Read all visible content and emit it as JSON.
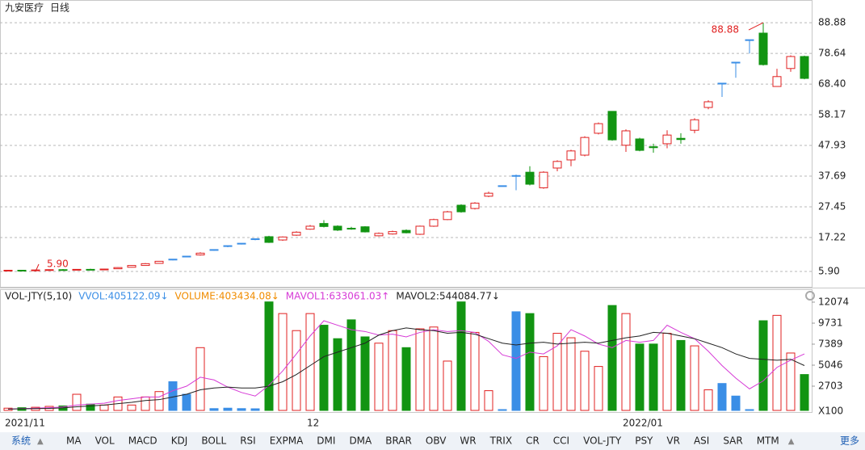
{
  "header": {
    "title": "九安医疗",
    "period": "日线"
  },
  "chart_data": [
    {
      "type": "candlestick",
      "categories": [
        "2021/11",
        null,
        null,
        null,
        null,
        null,
        null,
        null,
        null,
        null,
        null,
        null,
        null,
        null,
        null,
        null,
        null,
        null,
        null,
        null,
        null,
        null,
        "12",
        null,
        null,
        null,
        null,
        null,
        null,
        null,
        null,
        null,
        null,
        null,
        null,
        null,
        null,
        null,
        null,
        null,
        null,
        null,
        null,
        null,
        null,
        "2022/01",
        null,
        null,
        null,
        null,
        null,
        null,
        null,
        null,
        null,
        null,
        null,
        null,
        null
      ],
      "open": [
        6.2,
        6.3,
        6.2,
        6.4,
        6.5,
        6.4,
        6.6,
        6.5,
        6.8,
        7.3,
        7.9,
        8.6,
        10.0,
        11.0,
        11.4,
        13.2,
        14.5,
        15.3,
        16.8,
        17.5,
        16.4,
        18.0,
        20.0,
        21.9,
        21.0,
        20.3,
        20.8,
        17.8,
        18.4,
        19.6,
        18.3,
        21.0,
        23.2,
        28.0,
        26.9,
        31.0,
        34.5,
        37.9,
        39.0,
        33.8,
        40.4,
        43.1,
        44.7,
        52.0,
        59.3,
        48.0,
        50.1,
        47.5,
        48.5,
        50.3,
        53.0,
        60.6,
        68.7,
        75.7,
        83.2,
        85.4,
        67.6,
        73.6,
        77.6
      ],
      "close": [
        6.3,
        6.2,
        6.4,
        6.5,
        6.4,
        6.6,
        6.5,
        6.7,
        7.2,
        7.9,
        8.5,
        9.3,
        10.0,
        11.0,
        12.0,
        13.2,
        14.5,
        15.3,
        16.8,
        15.6,
        17.4,
        19.0,
        21.0,
        20.9,
        19.7,
        20.1,
        19.1,
        18.6,
        19.2,
        18.8,
        21.0,
        23.2,
        25.8,
        25.8,
        28.7,
        32.0,
        34.5,
        37.9,
        35.0,
        39.0,
        42.6,
        46.1,
        50.6,
        55.2,
        49.8,
        52.8,
        46.3,
        47.2,
        51.4,
        49.9,
        56.5,
        62.5,
        68.7,
        75.7,
        83.2,
        74.9,
        70.9,
        77.6,
        70.3
      ],
      "high": [
        6.4,
        6.4,
        6.5,
        6.6,
        6.7,
        6.7,
        6.8,
        6.8,
        7.3,
        8.0,
        8.7,
        9.4,
        10.0,
        11.0,
        12.3,
        13.2,
        14.5,
        15.3,
        16.8,
        17.8,
        17.6,
        19.3,
        21.4,
        23.0,
        21.3,
        20.8,
        21.0,
        18.9,
        19.5,
        19.9,
        21.2,
        23.5,
        26.1,
        28.3,
        29.0,
        32.5,
        34.5,
        38.2,
        41.0,
        39.3,
        43.0,
        46.5,
        51.0,
        55.6,
        59.3,
        53.3,
        50.5,
        48.5,
        53.0,
        52.0,
        57.0,
        63.0,
        68.7,
        75.7,
        83.2,
        88.88,
        73.5,
        78.0,
        77.9
      ],
      "low": [
        6.1,
        6.1,
        5.9,
        6.3,
        6.3,
        6.3,
        6.4,
        6.4,
        6.7,
        7.2,
        7.8,
        8.5,
        9.6,
        10.6,
        11.2,
        12.8,
        14.0,
        14.9,
        16.3,
        15.4,
        16.1,
        17.8,
        19.8,
        20.6,
        19.4,
        19.8,
        18.9,
        17.6,
        18.2,
        18.6,
        18.1,
        20.8,
        23.0,
        25.5,
        26.6,
        30.7,
        34.5,
        33.0,
        34.6,
        33.5,
        39.3,
        41.0,
        44.3,
        51.6,
        49.5,
        45.8,
        46.0,
        45.5,
        47.0,
        48.5,
        52.0,
        60.0,
        64.1,
        70.5,
        78.6,
        74.6,
        67.5,
        72.5,
        70.0
      ],
      "up_color": "#e02020",
      "down_color": "#129412",
      "flat_color": "#3a8ee6",
      "ylim": [
        0.78,
        95.1
      ],
      "yticks": [
        {
          "value": 5.9,
          "label": "5.90"
        },
        17.22,
        27.45,
        37.69,
        47.93,
        58.17,
        {
          "value": 68.4,
          "label": "68.40"
        },
        78.64,
        88.88
      ],
      "grid": true,
      "annotations": [
        {
          "value": 88.88,
          "label": "88.88"
        },
        {
          "value": 5.9,
          "label": "5.90"
        }
      ]
    },
    {
      "type": "bar",
      "values": [
        250,
        300,
        350,
        450,
        500,
        1800,
        700,
        600,
        1500,
        600,
        1500,
        2100,
        3200,
        1800,
        7000,
        200,
        250,
        200,
        180,
        12100,
        10800,
        8900,
        10800,
        9500,
        8000,
        10100,
        8200,
        7500,
        8900,
        7000,
        9100,
        9300,
        5500,
        12100,
        8700,
        2200,
        90,
        11000,
        10800,
        6000,
        8600,
        8100,
        6600,
        4900,
        11700,
        10800,
        7400,
        7400,
        8600,
        7800,
        7200,
        2300,
        3000,
        1600,
        90,
        10000,
        10600,
        6400,
        4000
      ],
      "ylim": [
        0,
        13514
      ],
      "yticks": [
        2703,
        5046,
        7389,
        9731,
        12074
      ],
      "unit": "X100",
      "indicator_labels": [
        {
          "text": "VOL-JTY(5,10)",
          "color": "#222"
        },
        {
          "text": "VVOL:405122.09↓",
          "color": "#3a8ee6"
        },
        {
          "text": "VOLUME:403434.08↓",
          "color": "#f08c00"
        }
      ],
      "series": [
        {
          "name": "MAVOL1:633061.03↑",
          "color": "#d63ad6",
          "values": [
            150,
            200,
            250,
            300,
            380,
            600,
            700,
            800,
            1100,
            1300,
            1500,
            1500,
            2200,
            2700,
            3700,
            3400,
            2600,
            2000,
            1600,
            2800,
            4400,
            6300,
            8300,
            10000,
            9500,
            9000,
            8800,
            8400,
            8500,
            8200,
            8700,
            9000,
            8800,
            8900,
            8700,
            7700,
            6200,
            5800,
            6500,
            6300,
            7200,
            9000,
            8300,
            7400,
            7000,
            7800,
            7600,
            7800,
            9500,
            8700,
            8000,
            6600,
            5000,
            3600,
            2400,
            3300,
            4800,
            5600,
            6300
          ]
        },
        {
          "name": "MAVOL2:544084.77↓",
          "color": "#222222",
          "values": [
            150,
            180,
            200,
            230,
            280,
            400,
            500,
            600,
            750,
            900,
            1100,
            1200,
            1500,
            1800,
            2300,
            2500,
            2600,
            2500,
            2500,
            2700,
            3200,
            4000,
            5000,
            6000,
            6500,
            7000,
            7500,
            8400,
            8900,
            9200,
            9000,
            8900,
            8600,
            8700,
            8500,
            8000,
            7500,
            7300,
            7500,
            7600,
            7400,
            7500,
            7600,
            7500,
            7800,
            8100,
            8300,
            8700,
            8600,
            8300,
            8000,
            7500,
            7000,
            6300,
            5800,
            5700,
            5600,
            5700,
            5000
          ]
        }
      ]
    }
  ],
  "toolbar": {
    "menu": "系统",
    "items": [
      "MA",
      "VOL",
      "MACD",
      "KDJ",
      "BOLL",
      "RSI",
      "EXPMA",
      "DMI",
      "DMA",
      "BRAR",
      "OBV",
      "WR",
      "TRIX",
      "CR",
      "CCI",
      "VOL-JTY",
      "PSY",
      "VR",
      "ASI",
      "SAR",
      "MTM"
    ],
    "more": "更多"
  }
}
